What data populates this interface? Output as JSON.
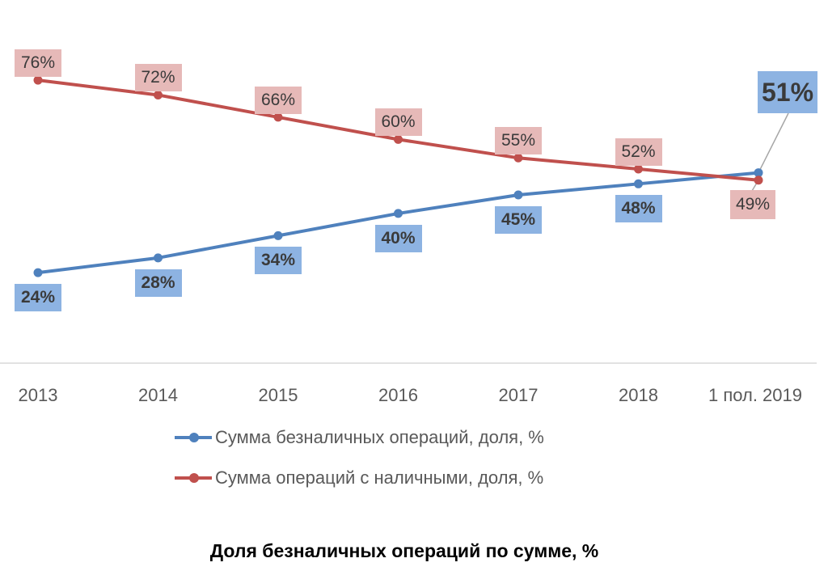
{
  "chart_data": {
    "type": "line",
    "title": "Доля безналичных операций по сумме, %",
    "categories": [
      "2013",
      "2014",
      "2015",
      "2016",
      "2017",
      "2018",
      "1 пол. 2019"
    ],
    "series": [
      {
        "name": "Сумма безналичных операций, доля, %",
        "values": [
          24,
          28,
          34,
          40,
          45,
          48,
          51
        ],
        "labels": [
          "24%",
          "28%",
          "34%",
          "40%",
          "45%",
          "48%",
          "51%"
        ],
        "color": "#4f81bd",
        "label_bg": "#8db3e2"
      },
      {
        "name": "Сумма операций с наличными, доля, %",
        "values": [
          76,
          72,
          66,
          60,
          55,
          52,
          49
        ],
        "labels": [
          "76%",
          "72%",
          "66%",
          "60%",
          "55%",
          "52%",
          "49%"
        ],
        "color": "#c0504d",
        "label_bg": "#e6b9b8"
      }
    ],
    "xlabel": "",
    "ylabel": "",
    "ylim": [
      0,
      100
    ],
    "grid": false,
    "legend": "bottom"
  }
}
